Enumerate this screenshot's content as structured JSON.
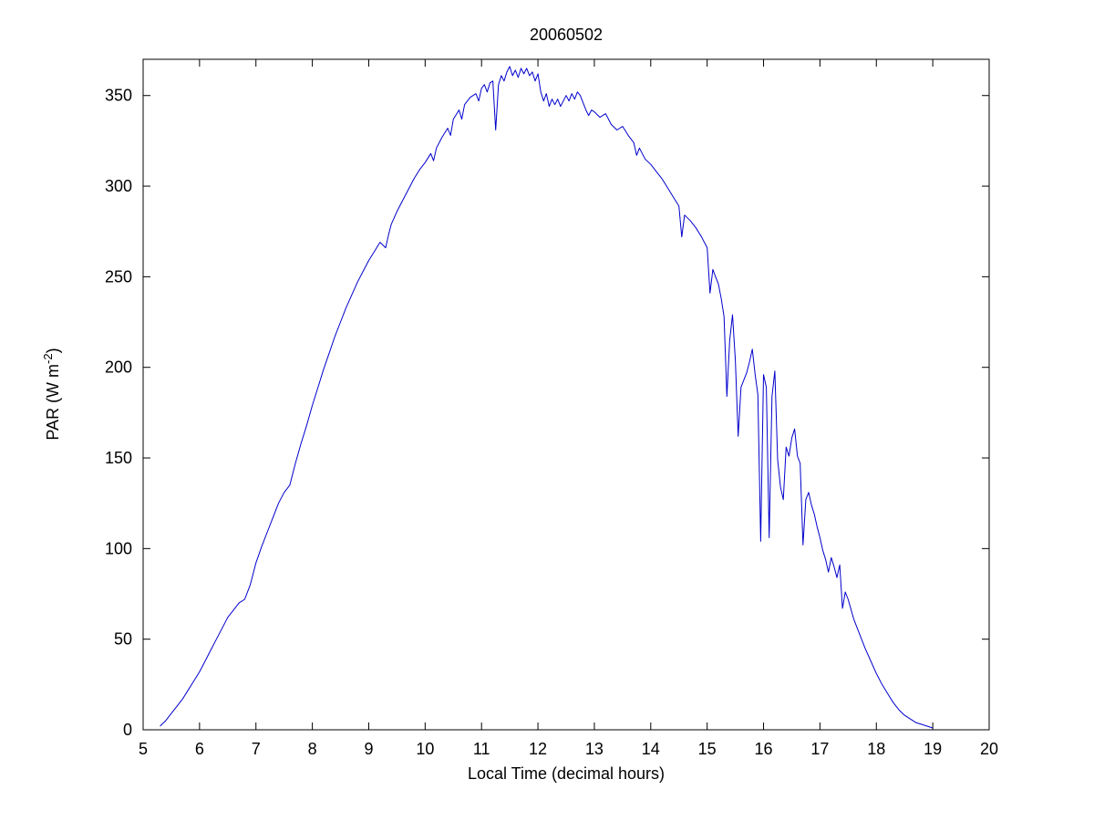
{
  "figure": {
    "background": "#ffffff"
  },
  "chart_data": {
    "type": "line",
    "title": "20060502",
    "xlabel": "Local Time (decimal hours)",
    "ylabel_prefix": "PAR (W m",
    "ylabel_sup": "-2",
    "ylabel_suffix": ")",
    "series_name": "PAR",
    "line_color": "#0000cc",
    "axis_color": "#000000",
    "xlim": [
      5,
      20
    ],
    "ylim": [
      0,
      370
    ],
    "xticks": [
      5,
      6,
      7,
      8,
      9,
      10,
      11,
      12,
      13,
      14,
      15,
      16,
      17,
      18,
      19,
      20
    ],
    "yticks": [
      0,
      50,
      100,
      150,
      200,
      250,
      300,
      350
    ],
    "grid": false,
    "legend": "none",
    "x": [
      5.3,
      5.4,
      5.5,
      5.6,
      5.7,
      5.8,
      5.9,
      6.0,
      6.1,
      6.2,
      6.3,
      6.4,
      6.5,
      6.6,
      6.7,
      6.8,
      6.9,
      7.0,
      7.1,
      7.2,
      7.3,
      7.4,
      7.5,
      7.6,
      7.7,
      7.8,
      7.9,
      8.0,
      8.1,
      8.2,
      8.3,
      8.4,
      8.5,
      8.6,
      8.7,
      8.8,
      8.9,
      9.0,
      9.1,
      9.2,
      9.3,
      9.35,
      9.4,
      9.5,
      9.6,
      9.7,
      9.8,
      9.9,
      10.0,
      10.1,
      10.15,
      10.2,
      10.3,
      10.4,
      10.45,
      10.5,
      10.6,
      10.65,
      10.7,
      10.8,
      10.9,
      10.95,
      11.0,
      11.05,
      11.1,
      11.15,
      11.2,
      11.25,
      11.3,
      11.35,
      11.4,
      11.45,
      11.5,
      11.55,
      11.6,
      11.65,
      11.7,
      11.75,
      11.8,
      11.85,
      11.9,
      11.95,
      12.0,
      12.05,
      12.1,
      12.15,
      12.2,
      12.25,
      12.3,
      12.35,
      12.4,
      12.45,
      12.5,
      12.55,
      12.6,
      12.65,
      12.7,
      12.75,
      12.8,
      12.85,
      12.9,
      12.95,
      13.0,
      13.1,
      13.2,
      13.3,
      13.4,
      13.5,
      13.6,
      13.7,
      13.75,
      13.8,
      13.9,
      14.0,
      14.1,
      14.2,
      14.3,
      14.4,
      14.5,
      14.55,
      14.6,
      14.7,
      14.8,
      14.9,
      15.0,
      15.05,
      15.1,
      15.15,
      15.2,
      15.25,
      15.3,
      15.35,
      15.4,
      15.45,
      15.5,
      15.55,
      15.6,
      15.65,
      15.7,
      15.75,
      15.8,
      15.85,
      15.9,
      15.95,
      16.0,
      16.05,
      16.1,
      16.15,
      16.2,
      16.25,
      16.3,
      16.35,
      16.4,
      16.45,
      16.5,
      16.55,
      16.6,
      16.65,
      16.7,
      16.75,
      16.8,
      16.85,
      16.9,
      16.95,
      17.0,
      17.05,
      17.1,
      17.15,
      17.2,
      17.25,
      17.3,
      17.35,
      17.4,
      17.45,
      17.5,
      17.6,
      17.7,
      17.8,
      17.9,
      18.0,
      18.1,
      18.2,
      18.3,
      18.4,
      18.5,
      18.6,
      18.7,
      18.8,
      18.9,
      19.0
    ],
    "y": [
      2,
      5,
      9,
      13,
      17,
      22,
      27,
      32,
      38,
      44,
      50,
      56,
      62,
      66,
      70,
      72,
      80,
      92,
      101,
      109,
      117,
      125,
      131,
      135,
      147,
      158,
      168,
      179,
      189,
      199,
      208,
      217,
      225,
      233,
      240,
      247,
      253,
      259,
      264,
      269,
      266,
      273,
      279,
      286,
      292,
      298,
      304,
      309,
      313,
      318,
      314,
      321,
      327,
      332,
      328,
      337,
      342,
      337,
      345,
      349,
      351,
      347,
      354,
      356,
      352,
      357,
      358,
      331,
      356,
      361,
      358,
      363,
      366,
      361,
      364,
      360,
      365,
      362,
      365,
      361,
      363,
      358,
      362,
      352,
      347,
      351,
      344,
      348,
      345,
      348,
      344,
      347,
      350,
      347,
      351,
      348,
      352,
      350,
      346,
      342,
      339,
      342,
      341,
      338,
      340,
      334,
      331,
      333,
      328,
      324,
      317,
      321,
      315,
      312,
      308,
      304,
      299,
      294,
      289,
      272,
      284,
      281,
      277,
      272,
      266,
      241,
      254,
      250,
      246,
      238,
      228,
      184,
      215,
      229,
      204,
      162,
      189,
      193,
      197,
      203,
      210,
      196,
      185,
      104,
      196,
      189,
      106,
      184,
      198,
      149,
      134,
      127,
      156,
      151,
      161,
      166,
      151,
      147,
      102,
      127,
      131,
      124,
      119,
      112,
      106,
      99,
      94,
      87,
      95,
      90,
      84,
      91,
      67,
      76,
      72,
      61,
      53,
      45,
      38,
      31,
      25,
      20,
      15,
      11,
      8,
      6,
      4,
      3,
      2,
      1
    ]
  }
}
